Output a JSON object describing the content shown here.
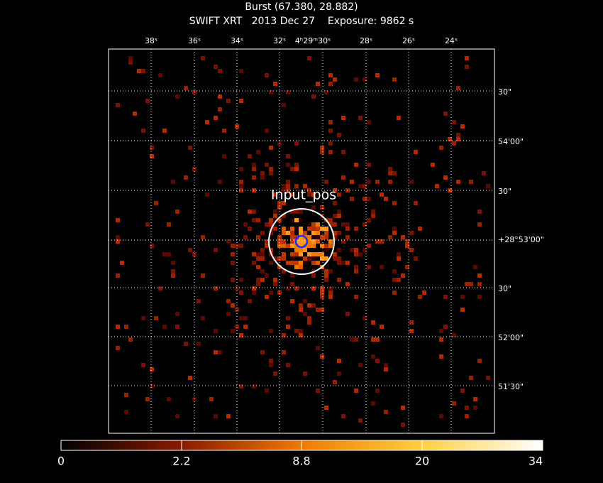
{
  "header": {
    "title": "Burst (67.380, 28.882)",
    "subtitle": "SWIFT XRT   2013 Dec 27    Exposure: 9862 s"
  },
  "image": {
    "source_label": "Input_pos",
    "ra_ticks": [
      "38ˢ",
      "36ˢ",
      "34ˢ",
      "32ˢ",
      "4ʰ29ᵐ30ˢ",
      "28ˢ",
      "26ˢ",
      "24ˢ"
    ],
    "dec_ticks": [
      "30\"",
      "54'00\"",
      "30\"",
      "+28°53'00\"",
      "30\"",
      "52'00\"",
      "51'30\""
    ]
  },
  "colorbar": {
    "labels": [
      "0",
      "2.2",
      "8.8",
      "20",
      "34"
    ]
  }
}
